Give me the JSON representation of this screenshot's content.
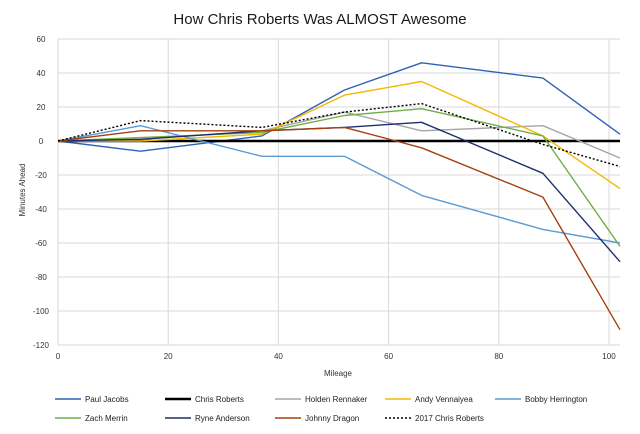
{
  "chart_data": {
    "type": "line",
    "title": "How Chris Roberts Was ALMOST Awesome",
    "xlabel": "Mileage",
    "ylabel": "Minutes Ahead",
    "xlim": [
      0,
      102
    ],
    "ylim": [
      -120,
      60
    ],
    "xticks": [
      0,
      20,
      40,
      60,
      80,
      100
    ],
    "yticks": [
      60,
      40,
      20,
      0,
      -20,
      -40,
      -60,
      -80,
      -100,
      -120
    ],
    "grid": true,
    "legend_position": "bottom",
    "series": [
      {
        "name": "Paul Jacobs",
        "color": "#2e62b5",
        "dash": "",
        "width": 1.4,
        "x": [
          0,
          15,
          37,
          52,
          66,
          88,
          102
        ],
        "y": [
          0,
          -6,
          3,
          30,
          46,
          37,
          4
        ]
      },
      {
        "name": "Chris Roberts",
        "color": "#000000",
        "dash": "",
        "width": 2.6,
        "x": [
          0,
          102
        ],
        "y": [
          0,
          0
        ]
      },
      {
        "name": "Holden Rennaker",
        "color": "#a5a5a5",
        "dash": "",
        "width": 1.4,
        "x": [
          0,
          15,
          37,
          52,
          66,
          88,
          102
        ],
        "y": [
          0,
          1,
          6,
          17,
          6,
          9,
          -10
        ]
      },
      {
        "name": "Andy Vennaiyea",
        "color": "#f5b800",
        "dash": "",
        "width": 1.4,
        "x": [
          0,
          15,
          37,
          52,
          66,
          88,
          102
        ],
        "y": [
          0,
          0,
          4,
          27,
          35,
          3,
          -28
        ]
      },
      {
        "name": "Bobby Herrington",
        "color": "#5b9bd5",
        "dash": "",
        "width": 1.4,
        "x": [
          0,
          15,
          37,
          52,
          66,
          88,
          102
        ],
        "y": [
          0,
          9,
          -9,
          -9,
          -32,
          -52,
          -60
        ]
      },
      {
        "name": "Zach Merrin",
        "color": "#70ad47",
        "dash": "",
        "width": 1.4,
        "x": [
          0,
          15,
          37,
          52,
          66,
          88,
          102
        ],
        "y": [
          0,
          2,
          5,
          15,
          19,
          3,
          -62
        ]
      },
      {
        "name": "Ryne Anderson",
        "color": "#1f2e6e",
        "dash": "",
        "width": 1.4,
        "x": [
          0,
          15,
          37,
          52,
          66,
          88,
          102
        ],
        "y": [
          0,
          1,
          6,
          8,
          11,
          -19,
          -71
        ]
      },
      {
        "name": "Johnny Dragon",
        "color": "#a5410f",
        "dash": "",
        "width": 1.4,
        "x": [
          0,
          15,
          37,
          52,
          66,
          88,
          102
        ],
        "y": [
          0,
          6,
          6,
          8,
          -4,
          -33,
          -111
        ]
      },
      {
        "name": "2017 Chris Roberts",
        "color": "#000000",
        "dash": "2,2",
        "width": 1.4,
        "x": [
          0,
          15,
          37,
          52,
          66,
          88,
          102
        ],
        "y": [
          0,
          12,
          8,
          17,
          22,
          -2,
          -15
        ]
      }
    ]
  }
}
